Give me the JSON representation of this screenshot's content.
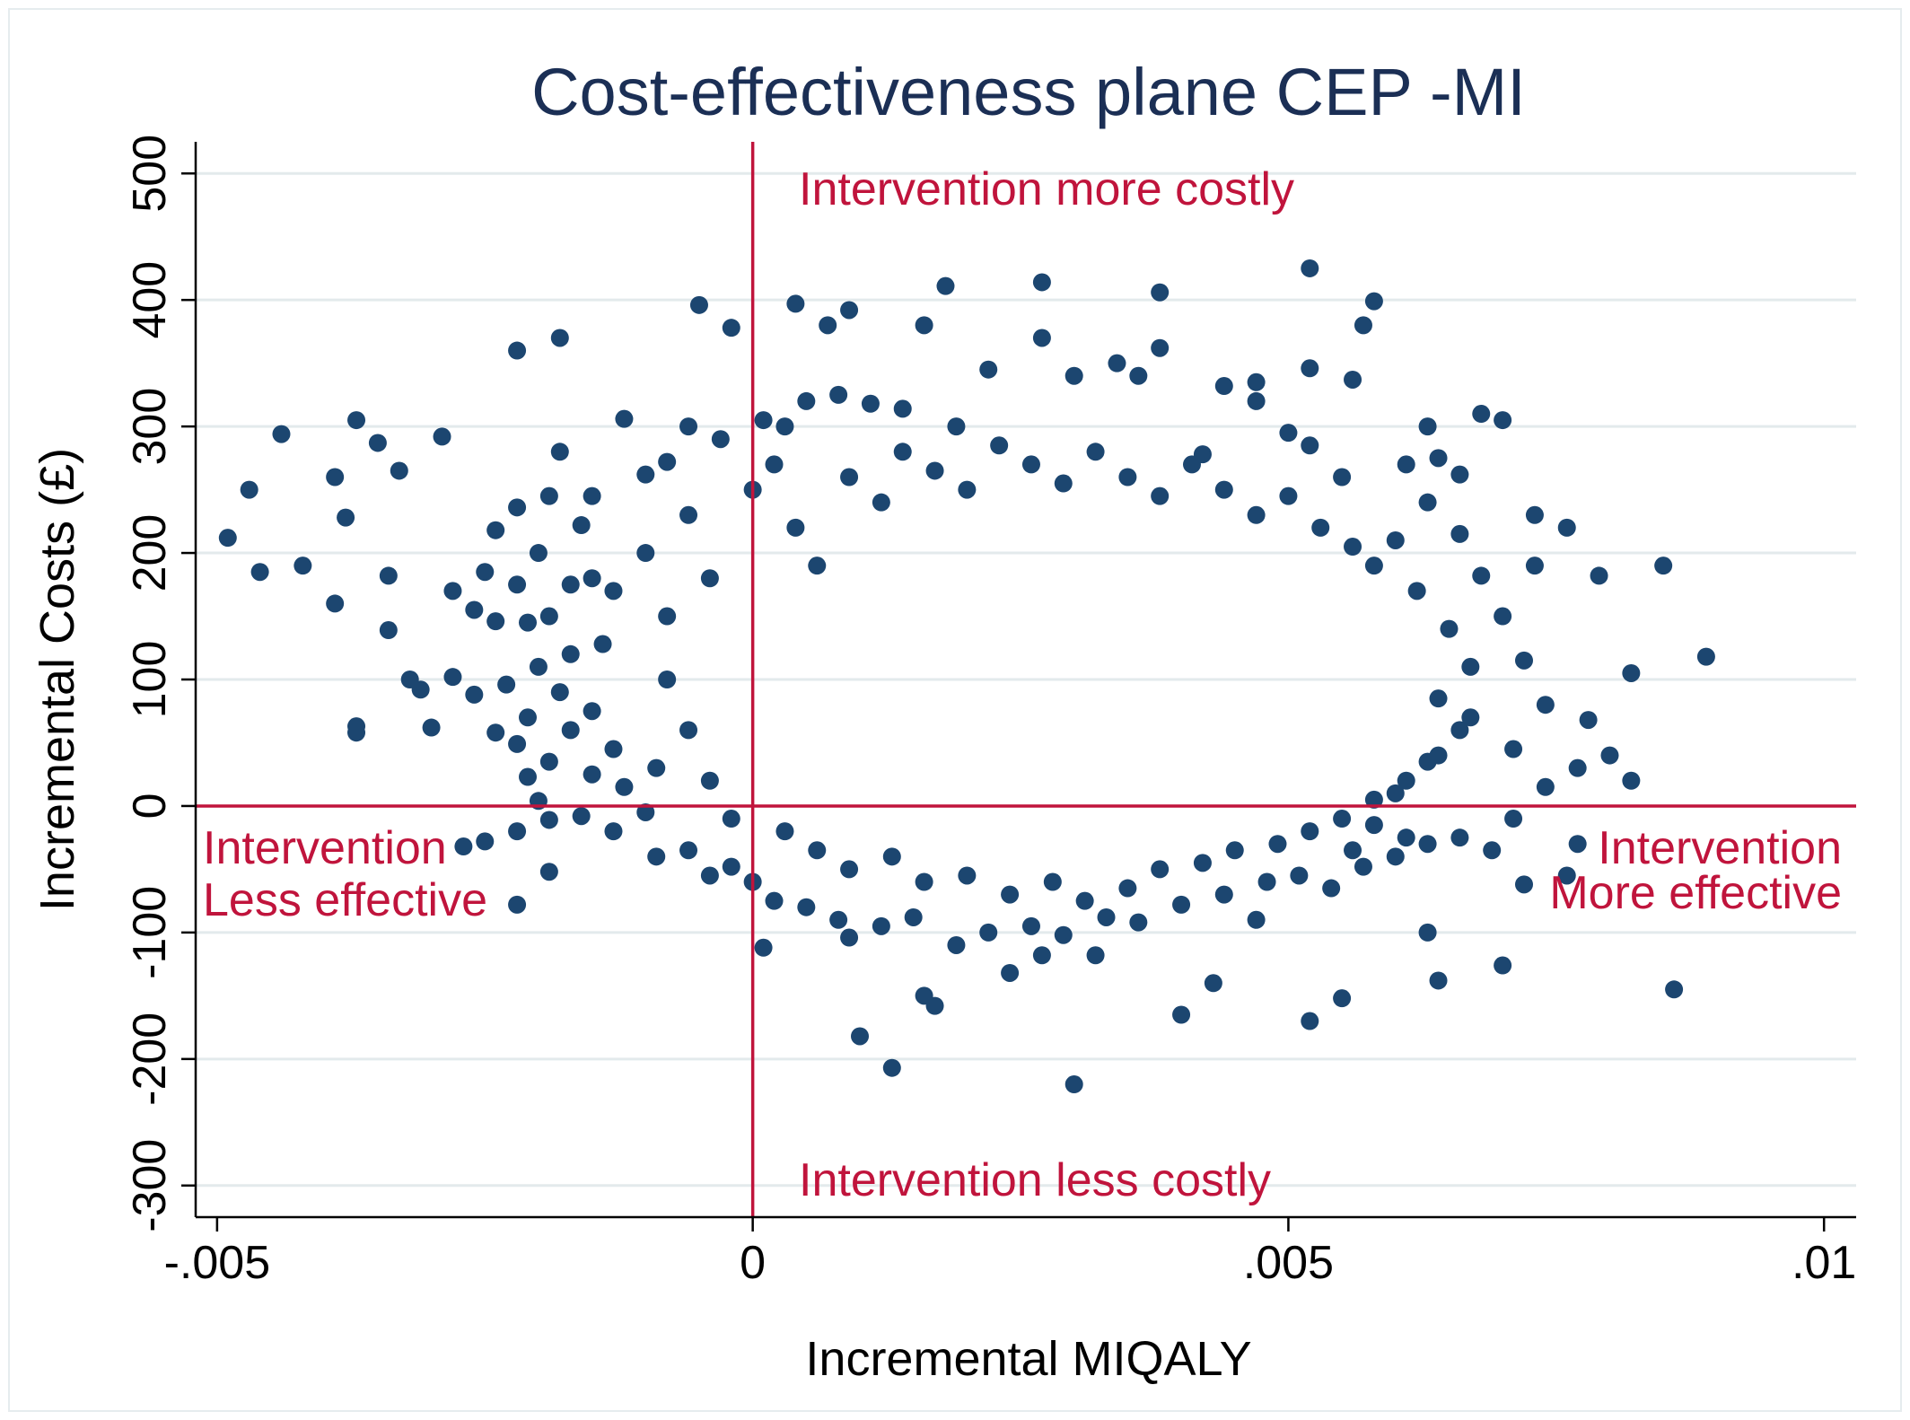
{
  "chart_data": {
    "type": "scatter",
    "title": "Cost-effectiveness plane CEP -MI",
    "xlabel": "Incremental MIQALY",
    "ylabel": "Incremental Costs (£)",
    "xlim": [
      -0.0052,
      0.0103
    ],
    "ylim": [
      -325,
      525
    ],
    "x_ticks": [
      -0.005,
      0,
      0.005,
      0.01
    ],
    "x_tick_labels": [
      ".005",
      "0",
      ".005",
      ".01"
    ],
    "x_tick_label_prefixes": [
      "-",
      "",
      "",
      ""
    ],
    "y_ticks": [
      -300,
      -200,
      -100,
      0,
      100,
      200,
      300,
      400,
      500
    ],
    "y_tick_labels": [
      "300",
      "200",
      "100",
      "0",
      "100",
      "200",
      "300",
      "400",
      "500"
    ],
    "y_tick_label_prefixes": [
      "-",
      "-",
      "-",
      "",
      "",
      "",
      "",
      "",
      ""
    ],
    "grid": true,
    "legend": "none",
    "colors": {
      "points": "#1c4670",
      "reference_lines": "#c0143c",
      "annotations": "#c0143c",
      "title": "#1b2f55",
      "grid": "#e3eaec"
    },
    "reference_lines": {
      "x": 0,
      "y": 0
    },
    "annotations": [
      {
        "id": "more-costly",
        "lines": [
          "Intervention more costly"
        ]
      },
      {
        "id": "less-costly",
        "lines": [
          "Intervention less costly"
        ]
      },
      {
        "id": "less-effective",
        "lines": [
          "Intervention",
          "Less effective"
        ]
      },
      {
        "id": "more-effective",
        "lines": [
          "Intervention",
          "More effective"
        ]
      }
    ],
    "series": [
      {
        "points": [
          [
            0.0052,
            425
          ],
          [
            0.0027,
            414
          ],
          [
            0.0018,
            411
          ],
          [
            0.0038,
            406
          ],
          [
            -0.0005,
            396
          ],
          [
            0.0004,
            397
          ],
          [
            0.0058,
            399
          ],
          [
            0.0009,
            392
          ],
          [
            0.0057,
            380
          ],
          [
            0.0016,
            380
          ],
          [
            0.0007,
            380
          ],
          [
            -0.0002,
            378
          ],
          [
            -0.0018,
            370
          ],
          [
            0.0027,
            370
          ],
          [
            0.0038,
            362
          ],
          [
            -0.0022,
            360
          ],
          [
            0.0036,
            340
          ],
          [
            0.0047,
            335
          ],
          [
            0.0052,
            346
          ],
          [
            0.0056,
            337
          ],
          [
            -0.0044,
            294
          ],
          [
            -0.0037,
            305
          ],
          [
            -0.0035,
            287
          ],
          [
            -0.0029,
            292
          ],
          [
            -0.0039,
            260
          ],
          [
            -0.0033,
            265
          ],
          [
            -0.0047,
            250
          ],
          [
            -0.0038,
            228
          ],
          [
            -0.0049,
            212
          ],
          [
            -0.0046,
            185
          ],
          [
            -0.0042,
            190
          ],
          [
            -0.0039,
            160
          ],
          [
            -0.0034,
            182
          ],
          [
            -0.0034,
            139
          ],
          [
            -0.0028,
            170
          ],
          [
            -0.0026,
            155
          ],
          [
            -0.0024,
            146
          ],
          [
            -0.0025,
            185
          ],
          [
            -0.0022,
            175
          ],
          [
            -0.0021,
            145
          ],
          [
            -0.0032,
            100
          ],
          [
            -0.0031,
            92
          ],
          [
            -0.0028,
            102
          ],
          [
            -0.0026,
            88
          ],
          [
            -0.0023,
            96
          ],
          [
            -0.0037,
            63
          ],
          [
            -0.0037,
            58
          ],
          [
            -0.003,
            62
          ],
          [
            -0.0024,
            58
          ],
          [
            -0.0022,
            49
          ],
          [
            -0.0021,
            23
          ],
          [
            -0.002,
            4
          ],
          [
            -0.0027,
            -32
          ],
          [
            -0.0025,
            -28
          ],
          [
            -0.0022,
            -20
          ],
          [
            -0.0019,
            -52
          ],
          [
            -0.0022,
            -78
          ],
          [
            -0.0019,
            -11
          ],
          [
            -0.0016,
            -8
          ],
          [
            0.0,
            -60
          ],
          [
            0.0001,
            -112
          ],
          [
            0.0009,
            -104
          ],
          [
            0.001,
            -182
          ],
          [
            0.0013,
            -207
          ],
          [
            0.0017,
            -158
          ],
          [
            0.0016,
            -150
          ],
          [
            0.0024,
            -132
          ],
          [
            0.0027,
            -118
          ],
          [
            0.003,
            -220
          ],
          [
            0.0032,
            -118
          ],
          [
            0.004,
            -165
          ],
          [
            0.0043,
            -140
          ],
          [
            0.0047,
            -90
          ],
          [
            0.0052,
            -170
          ],
          [
            0.0055,
            -152
          ],
          [
            0.0064,
            -138
          ],
          [
            0.007,
            -126
          ],
          [
            0.0063,
            -100
          ],
          [
            0.0086,
            -145
          ],
          [
            0.0089,
            118
          ],
          [
            0.0085,
            190
          ],
          [
            0.0082,
            105
          ],
          [
            0.0082,
            20
          ],
          [
            0.008,
            40
          ],
          [
            0.0078,
            68
          ],
          [
            0.0077,
            30
          ],
          [
            0.0079,
            182
          ],
          [
            0.0076,
            220
          ],
          [
            0.0077,
            -30
          ],
          [
            0.0076,
            -55
          ],
          [
            0.0072,
            -62
          ],
          [
            0.0073,
            230
          ],
          [
            0.0073,
            190
          ],
          [
            0.0068,
            310
          ],
          [
            0.007,
            305
          ],
          [
            0.0066,
            262
          ],
          [
            0.0063,
            300
          ],
          [
            0.0064,
            275
          ],
          [
            0.0061,
            270
          ],
          [
            0.0055,
            260
          ],
          [
            0.0052,
            285
          ],
          [
            0.005,
            295
          ],
          [
            0.0047,
            320
          ],
          [
            0.0044,
            332
          ],
          [
            0.0042,
            278
          ],
          [
            0.0034,
            350
          ],
          [
            0.003,
            340
          ],
          [
            0.0022,
            345
          ],
          [
            0.0019,
            300
          ],
          [
            0.0014,
            314
          ],
          [
            0.0011,
            318
          ],
          [
            0.0008,
            325
          ],
          [
            0.0005,
            320
          ],
          [
            0.0003,
            300
          ],
          [
            0.0001,
            305
          ],
          [
            -0.0003,
            290
          ],
          [
            -0.0006,
            300
          ],
          [
            -0.0008,
            272
          ],
          [
            -0.001,
            262
          ],
          [
            -0.0012,
            306
          ],
          [
            -0.0015,
            245
          ],
          [
            -0.0016,
            222
          ],
          [
            -0.0018,
            280
          ],
          [
            -0.0019,
            245
          ],
          [
            -0.0022,
            236
          ],
          [
            -0.0024,
            218
          ],
          [
            -0.002,
            200
          ],
          [
            -0.0017,
            175
          ],
          [
            -0.0015,
            180
          ],
          [
            -0.0013,
            170
          ],
          [
            -0.0019,
            150
          ],
          [
            -0.0017,
            120
          ],
          [
            -0.0014,
            128
          ],
          [
            -0.002,
            110
          ],
          [
            -0.0018,
            90
          ],
          [
            -0.0015,
            75
          ],
          [
            -0.0021,
            70
          ],
          [
            -0.0017,
            60
          ],
          [
            -0.0013,
            45
          ],
          [
            -0.0019,
            35
          ],
          [
            -0.0015,
            25
          ],
          [
            -0.0012,
            15
          ],
          [
            -0.001,
            -5
          ],
          [
            -0.0013,
            -20
          ],
          [
            -0.0009,
            -40
          ],
          [
            -0.0006,
            -35
          ],
          [
            -0.0004,
            -55
          ],
          [
            -0.0002,
            -48
          ],
          [
            0.0002,
            -75
          ],
          [
            0.0005,
            -80
          ],
          [
            0.0008,
            -90
          ],
          [
            0.0012,
            -95
          ],
          [
            0.0015,
            -88
          ],
          [
            0.0019,
            -110
          ],
          [
            0.0022,
            -100
          ],
          [
            0.0026,
            -95
          ],
          [
            0.0029,
            -102
          ],
          [
            0.0033,
            -88
          ],
          [
            0.0036,
            -92
          ],
          [
            0.004,
            -78
          ],
          [
            0.0044,
            -70
          ],
          [
            0.0048,
            -60
          ],
          [
            0.0051,
            -55
          ],
          [
            0.0054,
            -65
          ],
          [
            0.0057,
            -48
          ],
          [
            0.006,
            -40
          ],
          [
            0.0063,
            -30
          ],
          [
            0.0066,
            -25
          ],
          [
            0.0069,
            -35
          ],
          [
            0.0071,
            -10
          ],
          [
            0.0074,
            15
          ],
          [
            0.0071,
            45
          ],
          [
            0.0074,
            80
          ],
          [
            0.0072,
            115
          ],
          [
            0.007,
            150
          ],
          [
            0.0068,
            182
          ],
          [
            0.0066,
            215
          ],
          [
            0.0063,
            240
          ],
          [
            0.006,
            210
          ],
          [
            0.0058,
            190
          ],
          [
            0.0062,
            170
          ],
          [
            0.0065,
            140
          ],
          [
            0.0067,
            110
          ],
          [
            0.0064,
            85
          ],
          [
            0.0066,
            60
          ],
          [
            0.0063,
            35
          ],
          [
            0.006,
            10
          ],
          [
            0.0058,
            -15
          ],
          [
            0.0061,
            -25
          ],
          [
            0.0056,
            -35
          ],
          [
            -0.0008,
            150
          ],
          [
            -0.001,
            200
          ],
          [
            -0.0006,
            230
          ],
          [
            -0.0004,
            180
          ],
          [
            -0.0008,
            100
          ],
          [
            -0.0006,
            60
          ],
          [
            -0.0009,
            30
          ],
          [
            -0.0004,
            20
          ],
          [
            -0.0002,
            -10
          ],
          [
            0.0,
            250
          ],
          [
            0.0002,
            270
          ],
          [
            0.0004,
            220
          ],
          [
            0.0006,
            190
          ],
          [
            0.0009,
            260
          ],
          [
            0.0012,
            240
          ],
          [
            0.0014,
            280
          ],
          [
            0.0017,
            265
          ],
          [
            0.002,
            250
          ],
          [
            0.0023,
            285
          ],
          [
            0.0026,
            270
          ],
          [
            0.0029,
            255
          ],
          [
            0.0032,
            280
          ],
          [
            0.0035,
            260
          ],
          [
            0.0038,
            245
          ],
          [
            0.0041,
            270
          ],
          [
            0.0044,
            250
          ],
          [
            0.0047,
            230
          ],
          [
            0.005,
            245
          ],
          [
            0.0053,
            220
          ],
          [
            0.0056,
            205
          ],
          [
            0.0003,
            -20
          ],
          [
            0.0006,
            -35
          ],
          [
            0.0009,
            -50
          ],
          [
            0.0013,
            -40
          ],
          [
            0.0016,
            -60
          ],
          [
            0.002,
            -55
          ],
          [
            0.0024,
            -70
          ],
          [
            0.0028,
            -60
          ],
          [
            0.0031,
            -75
          ],
          [
            0.0035,
            -65
          ],
          [
            0.0038,
            -50
          ],
          [
            0.0042,
            -45
          ],
          [
            0.0045,
            -35
          ],
          [
            0.0049,
            -30
          ],
          [
            0.0052,
            -20
          ],
          [
            0.0055,
            -10
          ],
          [
            0.0058,
            5
          ],
          [
            0.0061,
            20
          ],
          [
            0.0064,
            40
          ],
          [
            0.0067,
            70
          ]
        ]
      }
    ]
  }
}
